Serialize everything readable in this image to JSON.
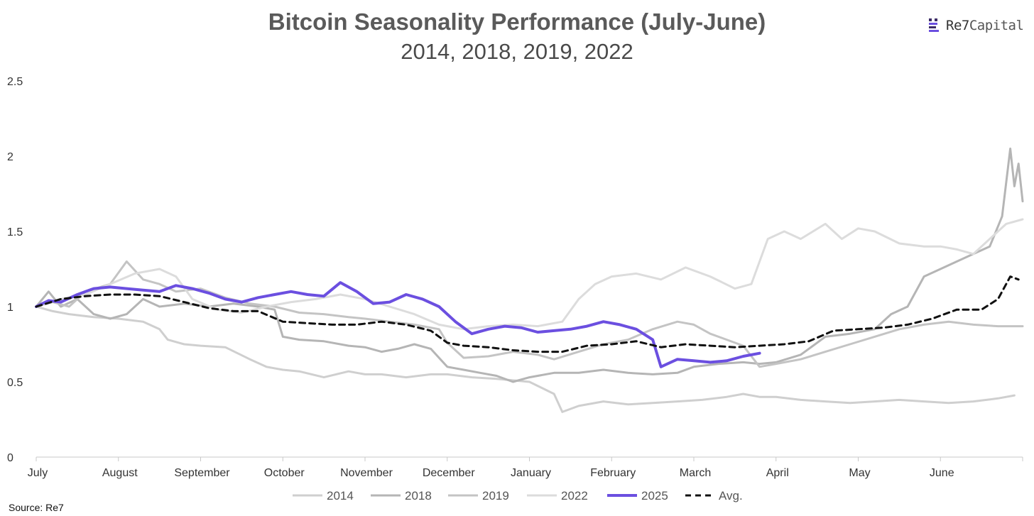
{
  "chart_data": {
    "type": "line",
    "title": "Bitcoin Seasonality Performance (July-June)",
    "subtitle": "2014, 2018, 2019, 2022",
    "xlabel": "",
    "ylabel": "",
    "x_ticks": [
      "July",
      "August",
      "September",
      "October",
      "November",
      "December",
      "January",
      "February",
      "March",
      "April",
      "May",
      "June"
    ],
    "y_ticks": [
      "0",
      "0.5",
      "1",
      "1.5",
      "2",
      "2.5"
    ],
    "ylim": [
      0,
      2.5
    ],
    "xlim": [
      0,
      12
    ],
    "grid": false,
    "legend_position": "bottom",
    "series": [
      {
        "name": "2014",
        "color": "#cfcfcf",
        "dashed": false,
        "points": [
          [
            0,
            1.0
          ],
          [
            0.2,
            0.97
          ],
          [
            0.4,
            0.95
          ],
          [
            0.7,
            0.93
          ],
          [
            1.0,
            0.92
          ],
          [
            1.3,
            0.9
          ],
          [
            1.5,
            0.85
          ],
          [
            1.6,
            0.78
          ],
          [
            1.8,
            0.75
          ],
          [
            2.0,
            0.74
          ],
          [
            2.3,
            0.73
          ],
          [
            2.6,
            0.65
          ],
          [
            2.8,
            0.6
          ],
          [
            3.0,
            0.58
          ],
          [
            3.2,
            0.57
          ],
          [
            3.5,
            0.53
          ],
          [
            3.8,
            0.57
          ],
          [
            4.0,
            0.55
          ],
          [
            4.2,
            0.55
          ],
          [
            4.5,
            0.53
          ],
          [
            4.8,
            0.55
          ],
          [
            5.0,
            0.55
          ],
          [
            5.3,
            0.53
          ],
          [
            5.6,
            0.52
          ],
          [
            6.0,
            0.5
          ],
          [
            6.3,
            0.42
          ],
          [
            6.4,
            0.3
          ],
          [
            6.6,
            0.34
          ],
          [
            6.9,
            0.37
          ],
          [
            7.2,
            0.35
          ],
          [
            7.5,
            0.36
          ],
          [
            7.8,
            0.37
          ],
          [
            8.1,
            0.38
          ],
          [
            8.4,
            0.4
          ],
          [
            8.6,
            0.42
          ],
          [
            8.8,
            0.4
          ],
          [
            9.0,
            0.4
          ],
          [
            9.3,
            0.38
          ],
          [
            9.6,
            0.37
          ],
          [
            9.9,
            0.36
          ],
          [
            10.2,
            0.37
          ],
          [
            10.5,
            0.38
          ],
          [
            10.8,
            0.37
          ],
          [
            11.1,
            0.36
          ],
          [
            11.4,
            0.37
          ],
          [
            11.7,
            0.39
          ],
          [
            11.9,
            0.41
          ]
        ]
      },
      {
        "name": "2018",
        "color": "#b5b5b5",
        "dashed": false,
        "points": [
          [
            0,
            1.0
          ],
          [
            0.15,
            1.1
          ],
          [
            0.3,
            1.0
          ],
          [
            0.5,
            1.05
          ],
          [
            0.7,
            0.95
          ],
          [
            0.9,
            0.92
          ],
          [
            1.1,
            0.95
          ],
          [
            1.3,
            1.05
          ],
          [
            1.5,
            1.0
          ],
          [
            1.8,
            1.02
          ],
          [
            2.1,
            1.0
          ],
          [
            2.4,
            1.02
          ],
          [
            2.7,
            1.0
          ],
          [
            2.9,
            0.98
          ],
          [
            3.0,
            0.8
          ],
          [
            3.2,
            0.78
          ],
          [
            3.5,
            0.77
          ],
          [
            3.8,
            0.74
          ],
          [
            4.0,
            0.73
          ],
          [
            4.2,
            0.7
          ],
          [
            4.4,
            0.72
          ],
          [
            4.6,
            0.75
          ],
          [
            4.8,
            0.72
          ],
          [
            5.0,
            0.6
          ],
          [
            5.2,
            0.58
          ],
          [
            5.4,
            0.56
          ],
          [
            5.6,
            0.54
          ],
          [
            5.8,
            0.5
          ],
          [
            6.0,
            0.53
          ],
          [
            6.3,
            0.56
          ],
          [
            6.6,
            0.56
          ],
          [
            6.9,
            0.58
          ],
          [
            7.2,
            0.56
          ],
          [
            7.5,
            0.55
          ],
          [
            7.8,
            0.56
          ],
          [
            8.0,
            0.6
          ],
          [
            8.3,
            0.62
          ],
          [
            8.6,
            0.63
          ],
          [
            8.8,
            0.62
          ],
          [
            9.0,
            0.63
          ],
          [
            9.3,
            0.68
          ],
          [
            9.6,
            0.8
          ],
          [
            9.9,
            0.82
          ],
          [
            10.2,
            0.85
          ],
          [
            10.4,
            0.95
          ],
          [
            10.6,
            1.0
          ],
          [
            10.8,
            1.2
          ],
          [
            11.0,
            1.25
          ],
          [
            11.2,
            1.3
          ],
          [
            11.4,
            1.35
          ],
          [
            11.6,
            1.4
          ],
          [
            11.75,
            1.6
          ],
          [
            11.85,
            2.05
          ],
          [
            11.9,
            1.8
          ],
          [
            11.95,
            1.95
          ],
          [
            12.0,
            1.7
          ]
        ]
      },
      {
        "name": "2019",
        "color": "#c4c4c4",
        "dashed": false,
        "points": [
          [
            0,
            1.0
          ],
          [
            0.2,
            1.03
          ],
          [
            0.4,
            1.0
          ],
          [
            0.6,
            1.1
          ],
          [
            0.9,
            1.15
          ],
          [
            1.1,
            1.3
          ],
          [
            1.3,
            1.18
          ],
          [
            1.5,
            1.15
          ],
          [
            1.7,
            1.1
          ],
          [
            2.0,
            1.12
          ],
          [
            2.3,
            1.06
          ],
          [
            2.6,
            1.02
          ],
          [
            2.9,
            1.0
          ],
          [
            3.2,
            0.96
          ],
          [
            3.5,
            0.95
          ],
          [
            3.8,
            0.93
          ],
          [
            4.0,
            0.92
          ],
          [
            4.3,
            0.9
          ],
          [
            4.6,
            0.88
          ],
          [
            4.9,
            0.85
          ],
          [
            5.0,
            0.76
          ],
          [
            5.2,
            0.66
          ],
          [
            5.5,
            0.67
          ],
          [
            5.8,
            0.7
          ],
          [
            6.1,
            0.68
          ],
          [
            6.3,
            0.65
          ],
          [
            6.6,
            0.7
          ],
          [
            6.9,
            0.75
          ],
          [
            7.2,
            0.78
          ],
          [
            7.5,
            0.85
          ],
          [
            7.8,
            0.9
          ],
          [
            8.0,
            0.88
          ],
          [
            8.2,
            0.82
          ],
          [
            8.4,
            0.78
          ],
          [
            8.6,
            0.74
          ],
          [
            8.8,
            0.6
          ],
          [
            9.0,
            0.62
          ],
          [
            9.3,
            0.65
          ],
          [
            9.6,
            0.7
          ],
          [
            9.9,
            0.75
          ],
          [
            10.2,
            0.8
          ],
          [
            10.5,
            0.85
          ],
          [
            10.8,
            0.88
          ],
          [
            11.1,
            0.9
          ],
          [
            11.4,
            0.88
          ],
          [
            11.7,
            0.87
          ],
          [
            12.0,
            0.87
          ]
        ]
      },
      {
        "name": "2022",
        "color": "#dcdcdc",
        "dashed": false,
        "points": [
          [
            0,
            1.0
          ],
          [
            0.3,
            1.05
          ],
          [
            0.6,
            1.08
          ],
          [
            0.9,
            1.15
          ],
          [
            1.2,
            1.22
          ],
          [
            1.5,
            1.25
          ],
          [
            1.7,
            1.2
          ],
          [
            1.9,
            1.05
          ],
          [
            2.2,
            0.98
          ],
          [
            2.5,
            0.96
          ],
          [
            2.8,
            1.0
          ],
          [
            3.1,
            1.03
          ],
          [
            3.4,
            1.05
          ],
          [
            3.7,
            1.08
          ],
          [
            4.0,
            1.05
          ],
          [
            4.3,
            1.0
          ],
          [
            4.6,
            0.95
          ],
          [
            4.9,
            0.88
          ],
          [
            5.2,
            0.85
          ],
          [
            5.5,
            0.87
          ],
          [
            5.8,
            0.88
          ],
          [
            6.1,
            0.87
          ],
          [
            6.4,
            0.9
          ],
          [
            6.6,
            1.05
          ],
          [
            6.8,
            1.15
          ],
          [
            7.0,
            1.2
          ],
          [
            7.3,
            1.22
          ],
          [
            7.6,
            1.18
          ],
          [
            7.9,
            1.26
          ],
          [
            8.2,
            1.2
          ],
          [
            8.5,
            1.12
          ],
          [
            8.7,
            1.15
          ],
          [
            8.8,
            1.3
          ],
          [
            8.9,
            1.45
          ],
          [
            9.1,
            1.5
          ],
          [
            9.3,
            1.45
          ],
          [
            9.6,
            1.55
          ],
          [
            9.8,
            1.45
          ],
          [
            10.0,
            1.52
          ],
          [
            10.2,
            1.5
          ],
          [
            10.5,
            1.42
          ],
          [
            10.8,
            1.4
          ],
          [
            11.0,
            1.4
          ],
          [
            11.2,
            1.38
          ],
          [
            11.4,
            1.35
          ],
          [
            11.6,
            1.45
          ],
          [
            11.8,
            1.55
          ],
          [
            12.0,
            1.58
          ]
        ]
      },
      {
        "name": "2025",
        "color": "#6b4fe0",
        "dashed": false,
        "points": [
          [
            0,
            1.0
          ],
          [
            0.15,
            1.04
          ],
          [
            0.3,
            1.03
          ],
          [
            0.5,
            1.08
          ],
          [
            0.7,
            1.12
          ],
          [
            0.9,
            1.13
          ],
          [
            1.1,
            1.12
          ],
          [
            1.3,
            1.11
          ],
          [
            1.5,
            1.1
          ],
          [
            1.7,
            1.14
          ],
          [
            1.9,
            1.12
          ],
          [
            2.1,
            1.09
          ],
          [
            2.3,
            1.05
          ],
          [
            2.5,
            1.03
          ],
          [
            2.7,
            1.06
          ],
          [
            2.9,
            1.08
          ],
          [
            3.1,
            1.1
          ],
          [
            3.3,
            1.08
          ],
          [
            3.5,
            1.07
          ],
          [
            3.7,
            1.16
          ],
          [
            3.9,
            1.1
          ],
          [
            4.1,
            1.02
          ],
          [
            4.3,
            1.03
          ],
          [
            4.5,
            1.08
          ],
          [
            4.7,
            1.05
          ],
          [
            4.9,
            1.0
          ],
          [
            5.1,
            0.9
          ],
          [
            5.3,
            0.82
          ],
          [
            5.5,
            0.85
          ],
          [
            5.7,
            0.87
          ],
          [
            5.9,
            0.86
          ],
          [
            6.1,
            0.83
          ],
          [
            6.3,
            0.84
          ],
          [
            6.5,
            0.85
          ],
          [
            6.7,
            0.87
          ],
          [
            6.9,
            0.9
          ],
          [
            7.1,
            0.88
          ],
          [
            7.3,
            0.85
          ],
          [
            7.5,
            0.78
          ],
          [
            7.6,
            0.6
          ],
          [
            7.8,
            0.65
          ],
          [
            8.0,
            0.64
          ],
          [
            8.2,
            0.63
          ],
          [
            8.4,
            0.64
          ],
          [
            8.6,
            0.67
          ],
          [
            8.8,
            0.69
          ]
        ]
      },
      {
        "name": "Avg.",
        "color": "#111111",
        "dashed": true,
        "points": [
          [
            0,
            1.0
          ],
          [
            0.3,
            1.05
          ],
          [
            0.6,
            1.07
          ],
          [
            0.9,
            1.08
          ],
          [
            1.2,
            1.08
          ],
          [
            1.5,
            1.07
          ],
          [
            1.8,
            1.03
          ],
          [
            2.1,
            0.99
          ],
          [
            2.4,
            0.97
          ],
          [
            2.7,
            0.97
          ],
          [
            3.0,
            0.9
          ],
          [
            3.3,
            0.89
          ],
          [
            3.6,
            0.88
          ],
          [
            3.9,
            0.88
          ],
          [
            4.2,
            0.9
          ],
          [
            4.5,
            0.88
          ],
          [
            4.8,
            0.84
          ],
          [
            5.0,
            0.76
          ],
          [
            5.2,
            0.74
          ],
          [
            5.5,
            0.73
          ],
          [
            5.8,
            0.71
          ],
          [
            6.1,
            0.7
          ],
          [
            6.4,
            0.7
          ],
          [
            6.7,
            0.74
          ],
          [
            7.0,
            0.75
          ],
          [
            7.3,
            0.77
          ],
          [
            7.6,
            0.73
          ],
          [
            7.9,
            0.75
          ],
          [
            8.2,
            0.74
          ],
          [
            8.5,
            0.73
          ],
          [
            8.8,
            0.74
          ],
          [
            9.1,
            0.75
          ],
          [
            9.4,
            0.77
          ],
          [
            9.7,
            0.84
          ],
          [
            10.0,
            0.85
          ],
          [
            10.3,
            0.86
          ],
          [
            10.6,
            0.88
          ],
          [
            10.9,
            0.92
          ],
          [
            11.2,
            0.98
          ],
          [
            11.5,
            0.98
          ],
          [
            11.7,
            1.05
          ],
          [
            11.85,
            1.2
          ],
          [
            11.95,
            1.18
          ]
        ]
      }
    ]
  },
  "logo": {
    "strong": "Re7",
    "light": "Capital"
  },
  "source": "Source: Re7"
}
